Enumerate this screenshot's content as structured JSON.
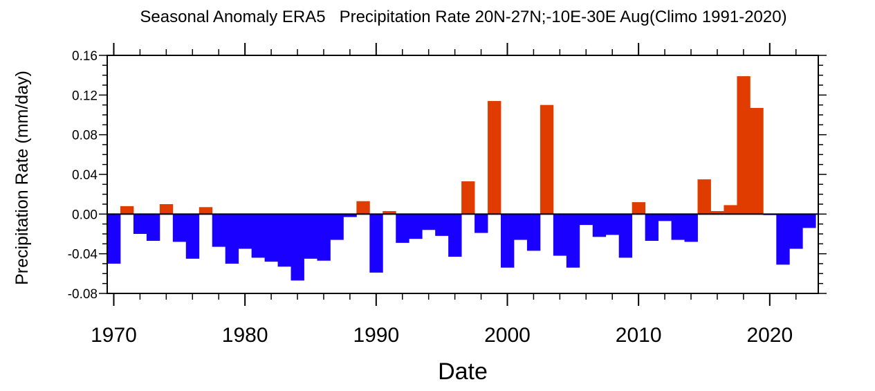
{
  "chart_data": {
    "type": "bar",
    "title": "Seasonal Anomaly ERA5   Precipitation Rate 20N-27N;-10E-30E Aug(Climo 1991-2020)",
    "xlabel": "Date",
    "ylabel": "Precipitation Rate (mm/day)",
    "xlim": [
      1969.5,
      2023.7
    ],
    "ylim": [
      -0.08,
      0.16
    ],
    "x_ticks": [
      1970,
      1980,
      1990,
      2000,
      2010,
      2020
    ],
    "y_ticks": [
      "-0.08",
      "-0.04",
      "0.00",
      "0.04",
      "0.08",
      "0.12",
      "0.16"
    ],
    "grid": false,
    "colors": {
      "positive": "#e03c00",
      "negative": "#1a00ff",
      "zero_line": "#000000"
    },
    "x": [
      1970,
      1971,
      1972,
      1973,
      1974,
      1975,
      1976,
      1977,
      1978,
      1979,
      1980,
      1981,
      1982,
      1983,
      1984,
      1985,
      1986,
      1987,
      1988,
      1989,
      1990,
      1991,
      1992,
      1993,
      1994,
      1995,
      1996,
      1997,
      1998,
      1999,
      2000,
      2001,
      2002,
      2003,
      2004,
      2005,
      2006,
      2007,
      2008,
      2009,
      2010,
      2011,
      2012,
      2013,
      2014,
      2015,
      2016,
      2017,
      2018,
      2019,
      2020,
      2021,
      2022,
      2023
    ],
    "values": [
      -0.05,
      0.008,
      -0.02,
      -0.027,
      0.01,
      -0.028,
      -0.045,
      0.007,
      -0.033,
      -0.05,
      -0.035,
      -0.044,
      -0.048,
      -0.053,
      -0.067,
      -0.045,
      -0.047,
      -0.026,
      -0.003,
      0.013,
      -0.059,
      0.003,
      -0.029,
      -0.025,
      -0.016,
      -0.022,
      -0.043,
      0.033,
      -0.019,
      0.114,
      -0.054,
      -0.026,
      -0.037,
      0.11,
      -0.042,
      -0.054,
      -0.011,
      -0.023,
      -0.021,
      -0.044,
      0.012,
      -0.027,
      -0.007,
      -0.026,
      -0.028,
      0.035,
      0.003,
      0.009,
      0.139,
      0.107,
      -0.001,
      -0.051,
      -0.035,
      -0.014
    ]
  }
}
